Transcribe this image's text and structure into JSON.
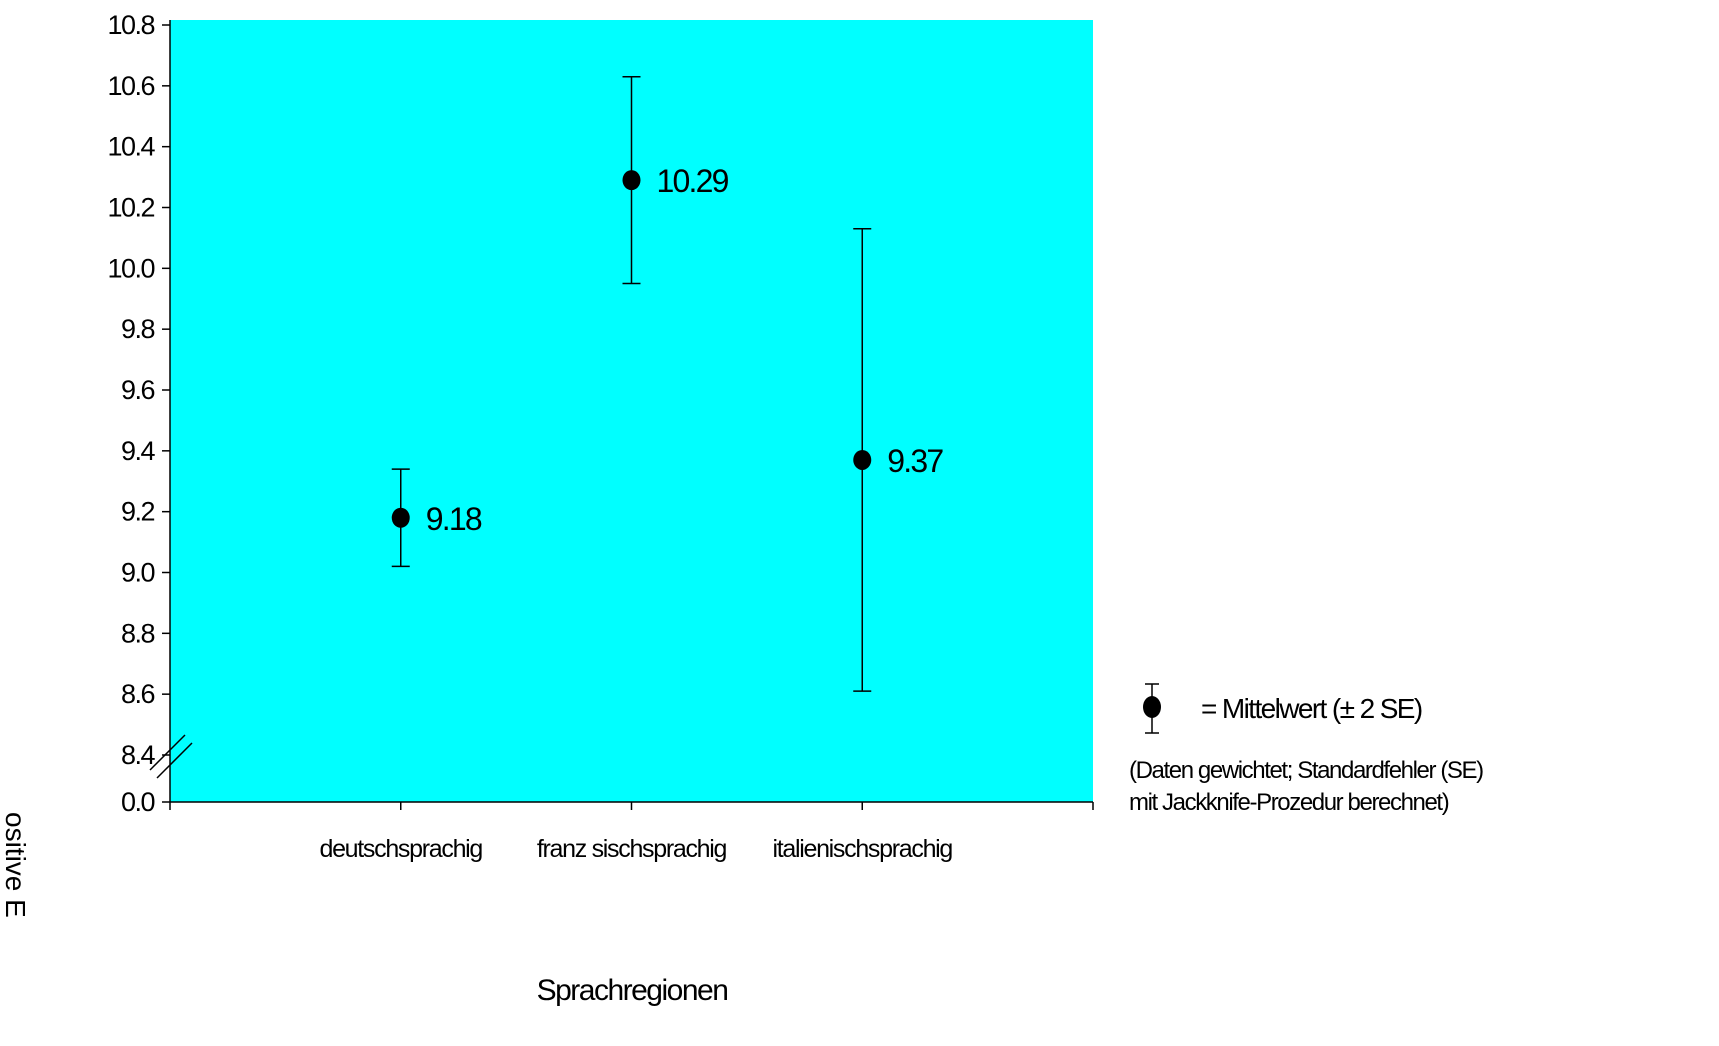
{
  "chart_data": {
    "type": "scatter",
    "subtype": "mean-with-error-bars",
    "title": "",
    "xlabel": "Sprachregionen",
    "ylabel_fragment": "ositive E",
    "categories": [
      "deutschsprachig",
      "franz sischsprachig",
      "italienischsprachig"
    ],
    "series": [
      {
        "values": [
          9.18,
          10.29,
          9.37
        ],
        "value_labels": [
          "9.18",
          "10.29",
          "9.37"
        ],
        "error_low": [
          9.02,
          9.95,
          8.61
        ],
        "error_high": [
          9.34,
          10.63,
          10.13
        ]
      }
    ],
    "y_ticks": [
      0.0,
      8.4,
      8.6,
      8.8,
      9.0,
      9.2,
      9.4,
      9.6,
      9.8,
      10.0,
      10.2,
      10.4,
      10.6,
      10.8
    ],
    "y_tick_labels": [
      "0.0",
      "8.4",
      "8.6",
      "8.8",
      "9.0",
      "9.2",
      "9.4",
      "9.6",
      "9.8",
      "10.0",
      "10.2",
      "10.4",
      "10.6",
      "10.8"
    ],
    "ylim": [
      8.4,
      10.8
    ],
    "y_axis_break": true,
    "grid": false,
    "plot_background": "#00ffff",
    "marker_color": "#000000",
    "legend": {
      "placement": "right",
      "label": "= Mittelwert (± 2 SE)",
      "note_line1": "(Daten gewichtet; Standardfehler (SE)",
      "note_line2": "mit Jackknife-Prozedur berechnet)"
    }
  }
}
